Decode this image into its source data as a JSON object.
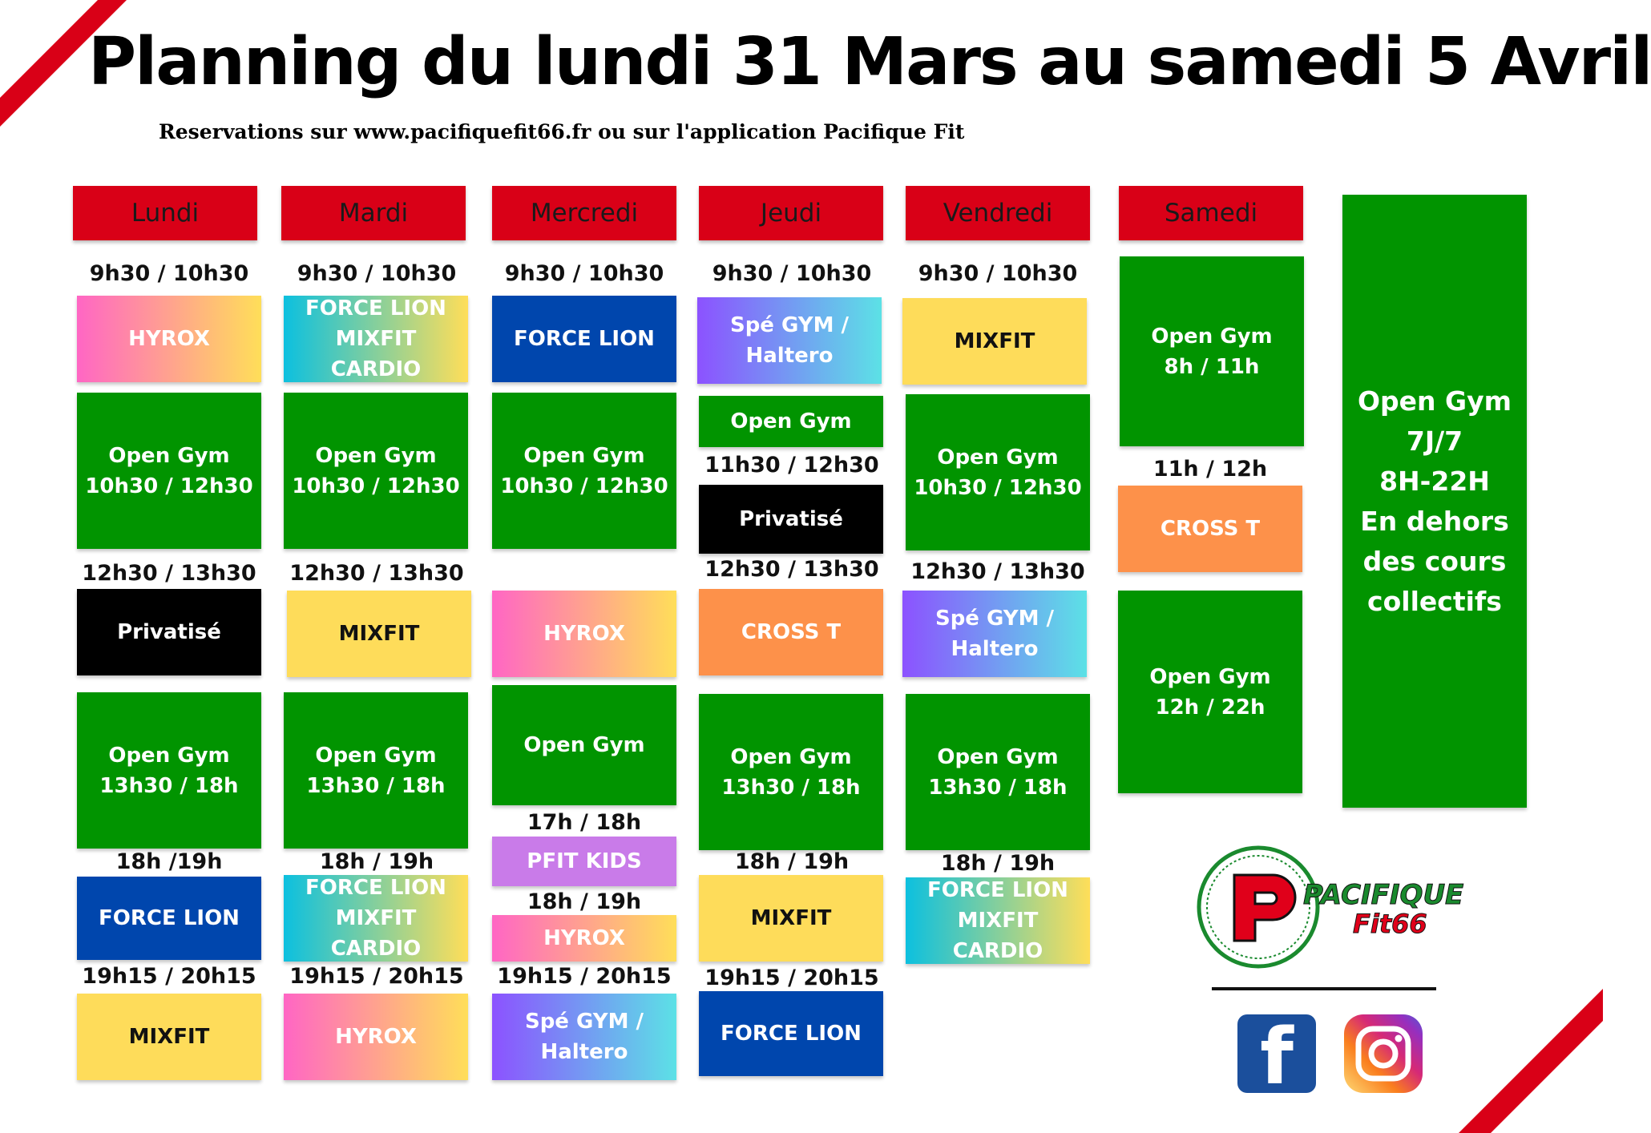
{
  "title": "Planning du lundi 31 Mars au samedi 5 Avril",
  "subtitle": "Reservations sur www.pacifiquefit66.fr ou sur l'application Pacifique Fit",
  "days": [
    "Lundi",
    "Mardi",
    "Mercredi",
    "Jeudi",
    "Vendredi",
    "Samedi"
  ],
  "lundi": {
    "t1": "9h30 / 10h30",
    "c1": "HYROX",
    "c2": "Open Gym\n10h30 / 12h30",
    "t3": "12h30 / 13h30",
    "c3": "Privatisé",
    "c4": "Open Gym\n13h30 / 18h",
    "t5": "18h /19h",
    "c5": "FORCE LION",
    "t6": "19h15 / 20h15",
    "c6": "MIXFIT"
  },
  "mardi": {
    "t1": "9h30 / 10h30",
    "c1": "FORCE LION\nMIXFIT CARDIO",
    "c2": "Open Gym\n10h30 / 12h30",
    "t3": "12h30 / 13h30",
    "c3": "MIXFIT",
    "c4": "Open Gym\n13h30 / 18h",
    "t5": "18h / 19h",
    "c5": "FORCE LION\nMIXFIT CARDIO",
    "t6": "19h15 / 20h15",
    "c6": "HYROX"
  },
  "mercredi": {
    "t1": "9h30 / 10h30",
    "c1": "FORCE LION",
    "c2": "Open Gym\n10h30 / 12h30",
    "c3": "HYROX",
    "c4": "Open Gym",
    "t5": "17h / 18h",
    "c5": "PFIT KIDS",
    "t6": "18h / 19h",
    "c6": "HYROX",
    "t7": "19h15 / 20h15",
    "c7": "Spé GYM /\nHaltero"
  },
  "jeudi": {
    "t1": "9h30 / 10h30",
    "c1": "Spé GYM /\nHaltero",
    "c2": "Open Gym",
    "t3": "11h30 / 12h30",
    "c3": "Privatisé",
    "t4": "12h30 / 13h30",
    "c4": "CROSS T",
    "c5": "Open Gym\n13h30 / 18h",
    "t6": "18h / 19h",
    "c6": "MIXFIT",
    "t7": "19h15 / 20h15",
    "c7": "FORCE LION"
  },
  "vendredi": {
    "t1": "9h30 / 10h30",
    "c1": "MIXFIT",
    "c2": "Open Gym\n10h30 / 12h30",
    "t3": "12h30 / 13h30",
    "c3": "Spé GYM /\nHaltero",
    "c4": "Open Gym\n13h30 / 18h",
    "t5": "18h / 19h",
    "c5": "FORCE LION\nMIXFIT CARDIO"
  },
  "samedi": {
    "c1": "Open Gym\n8h / 11h",
    "t2": "11h / 12h",
    "c2": "CROSS T",
    "c3": "Open Gym\n12h / 22h"
  },
  "open_gym_info": "Open Gym\n7J/7\n8H-22H\nEn dehors\ndes cours\ncollectifs",
  "logo": {
    "brand": "PACIFIQUE",
    "sub": "Fit66",
    "icons": [
      "facebook-icon",
      "instagram-icon"
    ]
  },
  "colors": {
    "header_red": "#d90017",
    "green": "#019400",
    "blue": "#0046ad"
  }
}
